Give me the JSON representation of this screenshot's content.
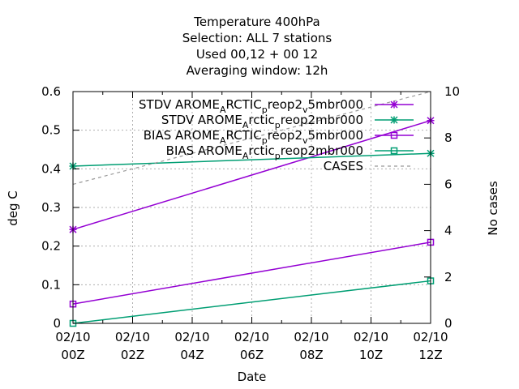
{
  "chart_data": {
    "type": "line",
    "title_lines": [
      "Temperature 400hPa",
      "Selection: ALL      7 stations",
      "Used  00,12  + 00 12",
      "Averaging window: 12h"
    ],
    "xlabel": "Date",
    "ylabel": "deg C",
    "y2label": "No cases",
    "x": [
      "02/10 00Z",
      "02/10 12Z"
    ],
    "xticks": [
      [
        "02/10",
        "00Z"
      ],
      [
        "02/10",
        "02Z"
      ],
      [
        "02/10",
        "04Z"
      ],
      [
        "02/10",
        "06Z"
      ],
      [
        "02/10",
        "08Z"
      ],
      [
        "02/10",
        "10Z"
      ],
      [
        "02/10",
        "12Z"
      ]
    ],
    "ylim": [
      0,
      0.6
    ],
    "yticks": [
      "0",
      "0.1",
      "0.2",
      "0.3",
      "0.4",
      "0.5",
      "0.6"
    ],
    "y2lim": [
      0,
      10
    ],
    "y2ticks": [
      "0",
      "2",
      "4",
      "6",
      "8",
      "10"
    ],
    "grid": true,
    "legend_position": "top-right",
    "series": [
      {
        "name": "STDV AROME_ARCTIC_preop2_v5mbr000",
        "legend_main": "STDV AROME",
        "legend_parts": [
          [
            "A",
            "sub"
          ],
          [
            "RCTIC",
            "base"
          ],
          [
            "p",
            "sub"
          ],
          [
            "reop2",
            "base"
          ],
          [
            "v",
            "sub"
          ],
          [
            "5mbr000",
            "base"
          ]
        ],
        "values": [
          0.243,
          0.525
        ],
        "axis": "y1",
        "color": "#9400d3",
        "marker": "star"
      },
      {
        "name": "STDV AROME_Arctic_preop2mbr000",
        "legend_main": "STDV AROME",
        "legend_parts": [
          [
            "A",
            "sub"
          ],
          [
            "rctic",
            "base"
          ],
          [
            "p",
            "sub"
          ],
          [
            "reop2mbr000",
            "base"
          ]
        ],
        "values": [
          0.407,
          0.44
        ],
        "axis": "y1",
        "color": "#009e73",
        "marker": "star"
      },
      {
        "name": "BIAS AROME_ARCTIC_preop2_v5mbr000",
        "legend_main": "BIAS AROME",
        "legend_parts": [
          [
            "A",
            "sub"
          ],
          [
            "RCTIC",
            "base"
          ],
          [
            "p",
            "sub"
          ],
          [
            "reop2",
            "base"
          ],
          [
            "v",
            "sub"
          ],
          [
            "5mbr000",
            "base"
          ]
        ],
        "values": [
          0.05,
          0.21
        ],
        "axis": "y1",
        "color": "#9400d3",
        "marker": "square"
      },
      {
        "name": "BIAS AROME_Arctic_preop2mbr000",
        "legend_main": "BIAS AROME",
        "legend_parts": [
          [
            "A",
            "sub"
          ],
          [
            "rctic",
            "base"
          ],
          [
            "p",
            "sub"
          ],
          [
            "reop2mbr000",
            "base"
          ]
        ],
        "values": [
          0.0,
          0.11
        ],
        "axis": "y1",
        "color": "#009e73",
        "marker": "square"
      },
      {
        "name": "CASES",
        "legend_main": "CASES",
        "legend_parts": [],
        "values": [
          6,
          10
        ],
        "axis": "y2",
        "color": "#999999",
        "marker": "none",
        "dashed": true
      }
    ]
  }
}
